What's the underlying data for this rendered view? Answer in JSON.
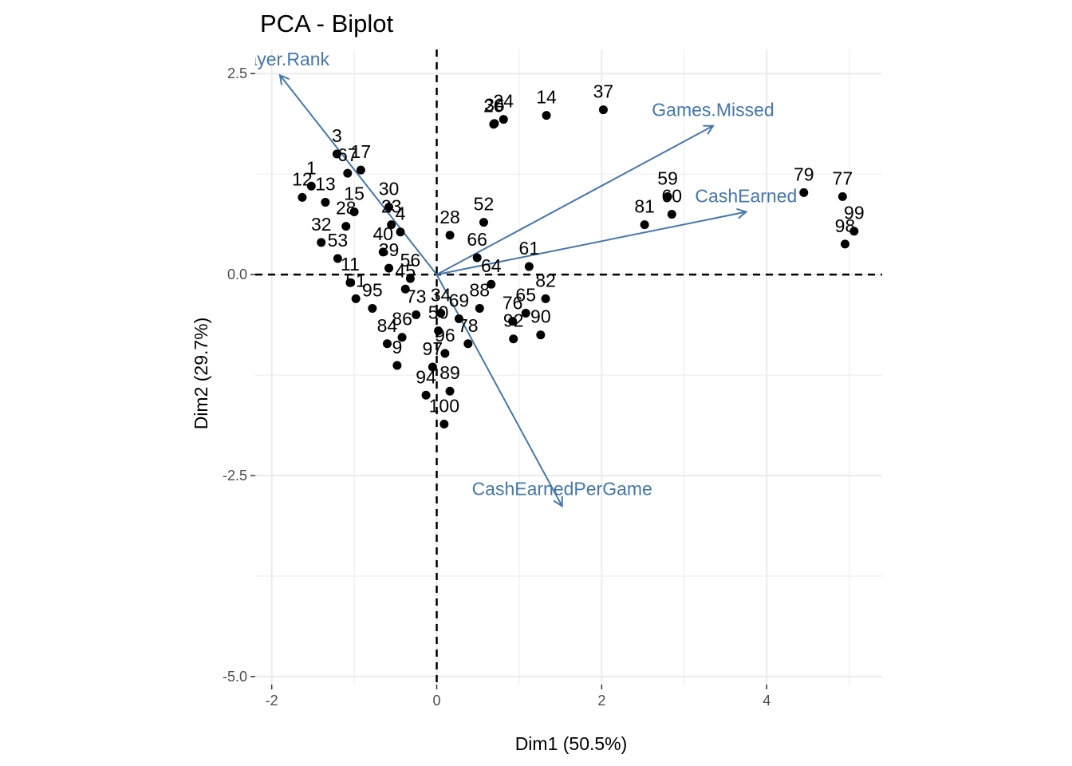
{
  "chart_data": {
    "type": "scatter",
    "title": "PCA - Biplot",
    "xlabel": "Dim1 (50.5%)",
    "ylabel": "Dim2 (29.7%)",
    "xlim": [
      -2.2,
      5.4
    ],
    "ylim": [
      -5.1,
      2.8
    ],
    "x_ticks": [
      -2,
      0,
      2,
      4
    ],
    "y_ticks": [
      -5.0,
      -2.5,
      0.0,
      2.5
    ],
    "x_tick_labels": [
      "-2",
      "0",
      "2",
      "4"
    ],
    "y_tick_labels": [
      "-5.0",
      "-2.5",
      "0.0",
      "2.5"
    ],
    "grid": true,
    "reference_lines": {
      "x": 0,
      "y": 0,
      "style": "dashed"
    },
    "colors": {
      "points": "#000000",
      "variables": "#4477aa",
      "grid": "#ebebeb"
    },
    "individuals": [
      {
        "label": "14",
        "x": 1.33,
        "y": 1.98
      },
      {
        "label": "37",
        "x": 2.02,
        "y": 2.05
      },
      {
        "label": "20",
        "x": 0.69,
        "y": 1.87
      },
      {
        "label": "24",
        "x": 0.81,
        "y": 1.93
      },
      {
        "label": "36",
        "x": 0.7,
        "y": 1.88
      },
      {
        "label": "79",
        "x": 4.45,
        "y": 1.02
      },
      {
        "label": "77",
        "x": 4.92,
        "y": 0.97
      },
      {
        "label": "99",
        "x": 5.06,
        "y": 0.54
      },
      {
        "label": "98",
        "x": 4.95,
        "y": 0.38
      },
      {
        "label": "59",
        "x": 2.8,
        "y": 0.97
      },
      {
        "label": "60",
        "x": 2.85,
        "y": 0.75
      },
      {
        "label": "81",
        "x": 2.52,
        "y": 0.62
      },
      {
        "label": "52",
        "x": 0.57,
        "y": 0.65
      },
      {
        "label": "28",
        "x": 0.16,
        "y": 0.49
      },
      {
        "label": "66",
        "x": 0.49,
        "y": 0.21
      },
      {
        "label": "61",
        "x": 1.12,
        "y": 0.1
      },
      {
        "label": "64",
        "x": 0.66,
        "y": -0.12
      },
      {
        "label": "82",
        "x": 1.32,
        "y": -0.3
      },
      {
        "label": "88",
        "x": 0.52,
        "y": -0.42
      },
      {
        "label": "65",
        "x": 1.08,
        "y": -0.48
      },
      {
        "label": "76",
        "x": 0.92,
        "y": -0.58
      },
      {
        "label": "90",
        "x": 1.26,
        "y": -0.75
      },
      {
        "label": "92",
        "x": 0.93,
        "y": -0.8
      },
      {
        "label": "34",
        "x": 0.05,
        "y": -0.48
      },
      {
        "label": "69",
        "x": 0.27,
        "y": -0.55
      },
      {
        "label": "78",
        "x": 0.38,
        "y": -0.86
      },
      {
        "label": "50",
        "x": 0.02,
        "y": -0.7
      },
      {
        "label": "96",
        "x": 0.1,
        "y": -0.98
      },
      {
        "label": "89",
        "x": 0.16,
        "y": -1.45
      },
      {
        "label": "97",
        "x": -0.05,
        "y": -1.15
      },
      {
        "label": "94",
        "x": -0.13,
        "y": -1.5
      },
      {
        "label": "100",
        "x": 0.09,
        "y": -1.86
      },
      {
        "label": "56",
        "x": -0.32,
        "y": -0.05
      },
      {
        "label": "45",
        "x": -0.38,
        "y": -0.18
      },
      {
        "label": "73",
        "x": -0.25,
        "y": -0.5
      },
      {
        "label": "86",
        "x": -0.42,
        "y": -0.78
      },
      {
        "label": "84",
        "x": -0.6,
        "y": -0.86
      },
      {
        "label": "9",
        "x": -0.48,
        "y": -1.13
      },
      {
        "label": "95",
        "x": -0.78,
        "y": -0.42
      },
      {
        "label": "51",
        "x": -0.98,
        "y": -0.3
      },
      {
        "label": "3",
        "x": -1.21,
        "y": 1.5
      },
      {
        "label": "67",
        "x": -1.08,
        "y": 1.26
      },
      {
        "label": "17",
        "x": -0.92,
        "y": 1.3
      },
      {
        "label": "1",
        "x": -1.52,
        "y": 1.1
      },
      {
        "label": "12",
        "x": -1.63,
        "y": 0.96
      },
      {
        "label": "13",
        "x": -1.35,
        "y": 0.9
      },
      {
        "label": "15",
        "x": -1.0,
        "y": 0.78
      },
      {
        "label": "30",
        "x": -0.58,
        "y": 0.84
      },
      {
        "label": "23",
        "x": -0.55,
        "y": 0.62
      },
      {
        "label": "28b",
        "x": -1.1,
        "y": 0.6
      },
      {
        "label": "4",
        "x": -0.44,
        "y": 0.53
      },
      {
        "label": "32",
        "x": -1.4,
        "y": 0.4
      },
      {
        "label": "40",
        "x": -0.65,
        "y": 0.28
      },
      {
        "label": "39",
        "x": -0.58,
        "y": 0.08
      },
      {
        "label": "53",
        "x": -1.2,
        "y": 0.2
      },
      {
        "label": "11",
        "x": -1.05,
        "y": -0.1
      }
    ],
    "variables": [
      {
        "label": "Player.Rank",
        "x": -1.9,
        "y": 2.48
      },
      {
        "label": "Games.Missed",
        "x": 3.35,
        "y": 1.85
      },
      {
        "label": "CashEarned",
        "x": 3.75,
        "y": 0.78
      },
      {
        "label": "CashEarnedPerGame",
        "x": 1.52,
        "y": -2.88
      }
    ]
  }
}
